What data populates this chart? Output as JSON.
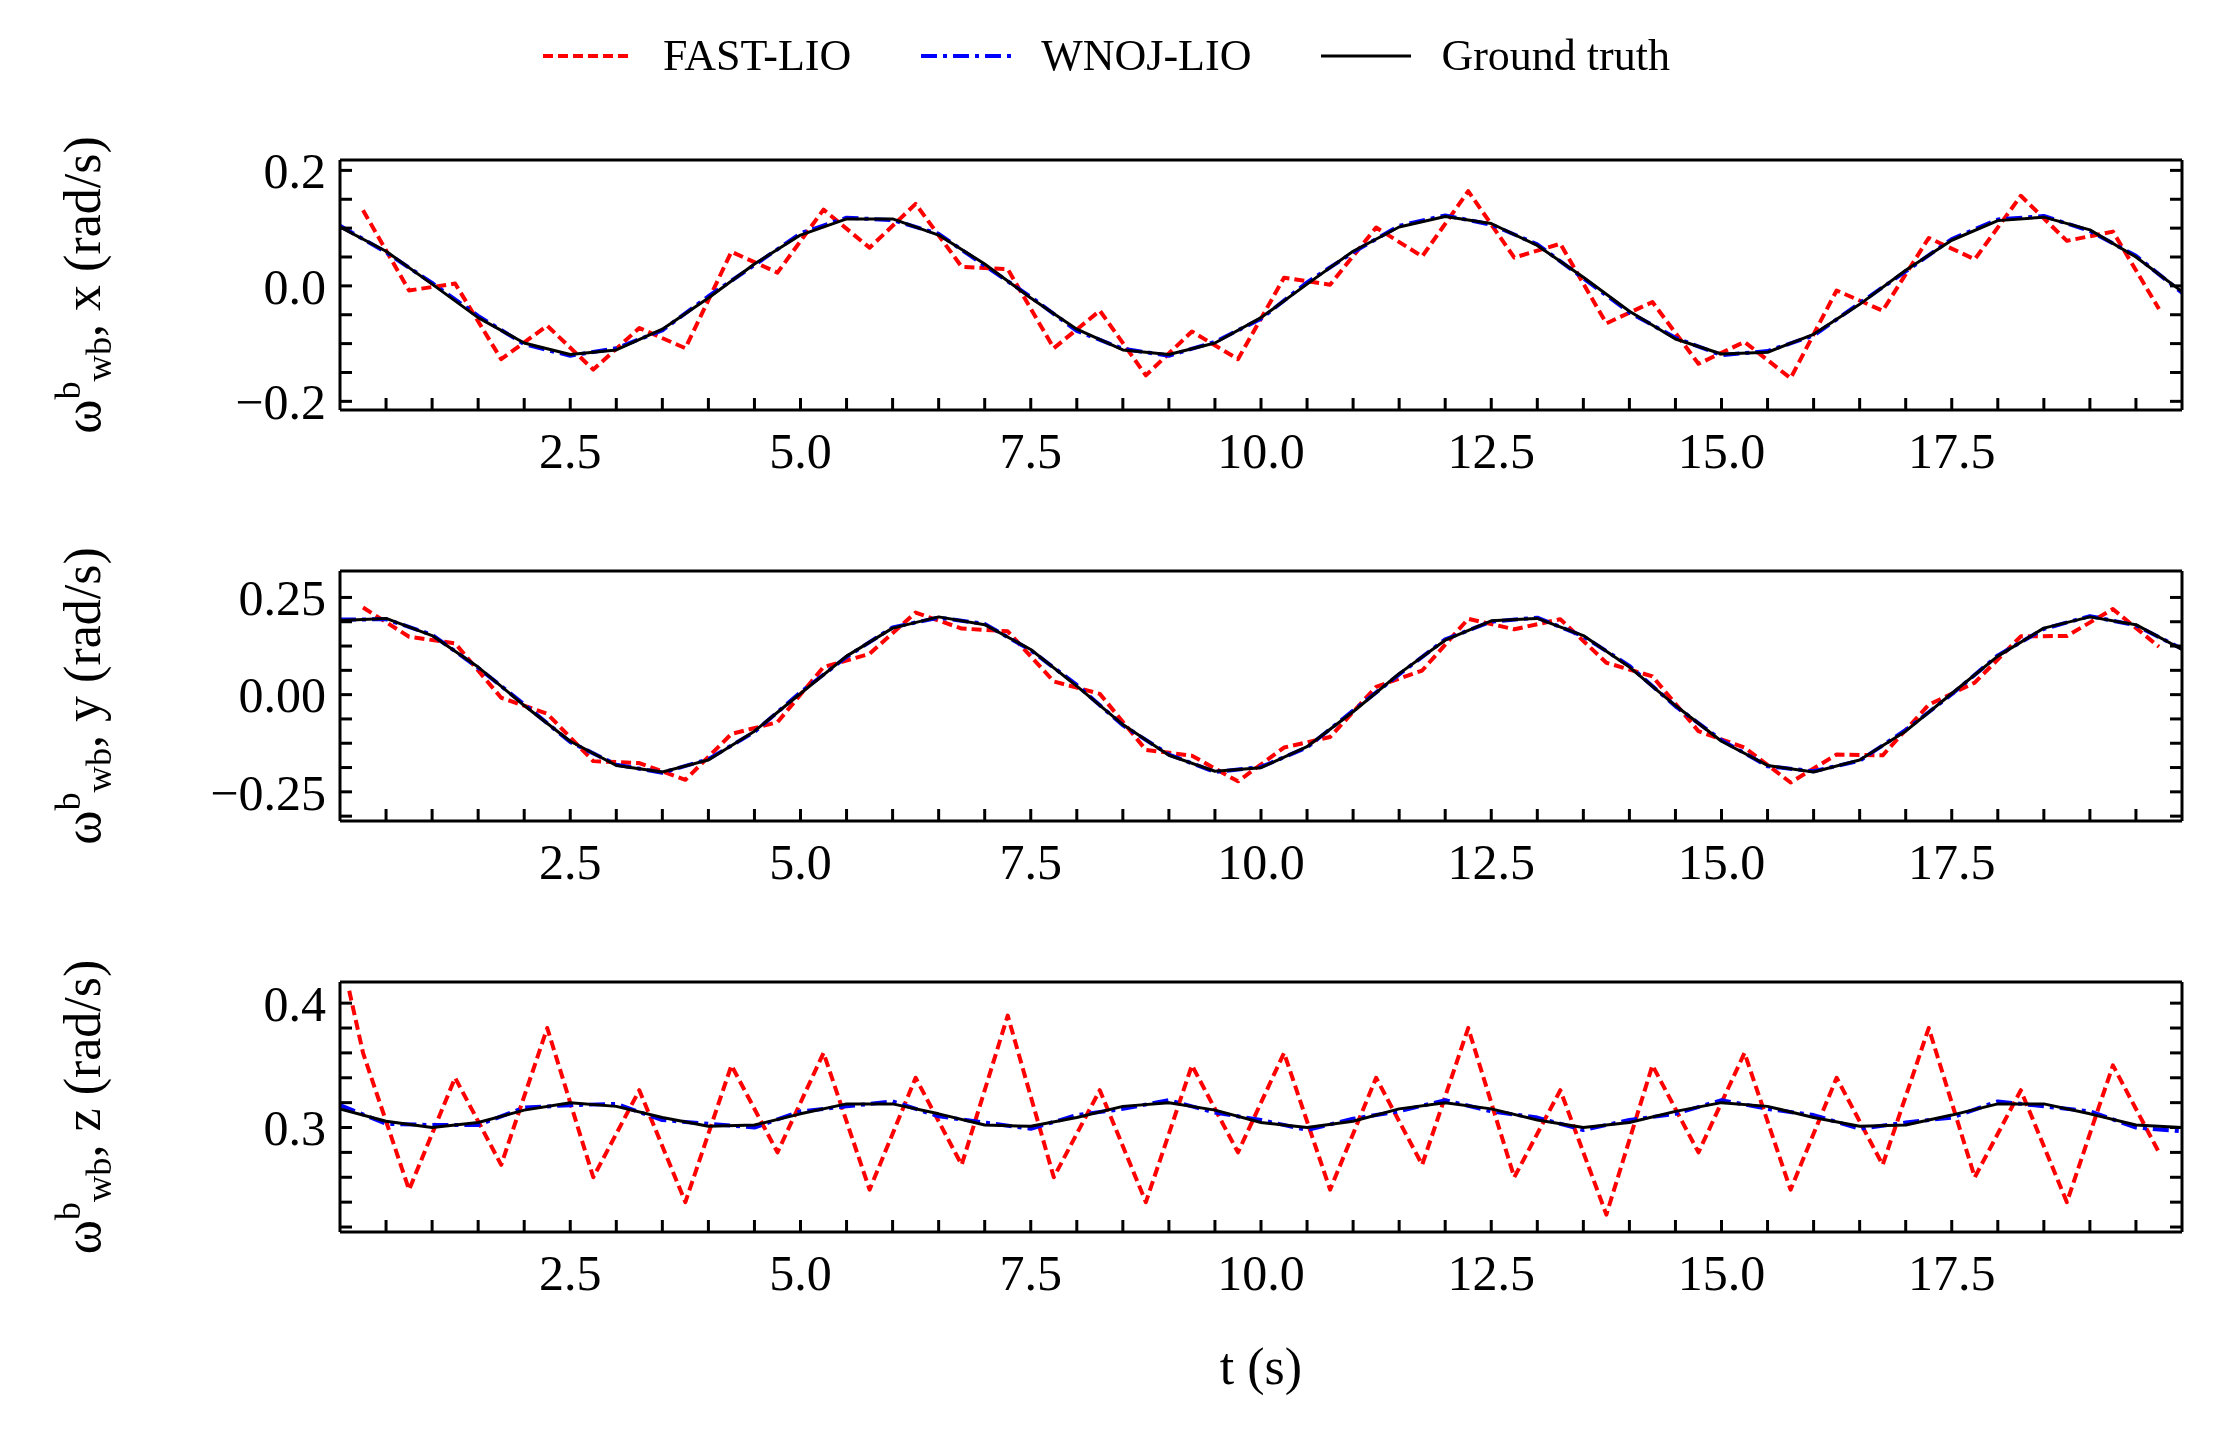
{
  "chart_data": [
    {
      "type": "line",
      "legend": "top",
      "ylabel": "ω$^{b}$$_{wb}$, x (rad/s)",
      "xlim": [
        0,
        20
      ],
      "ylim": [
        -0.215,
        0.218
      ],
      "xticks": [
        {
          "value": 0.5,
          "label": null
        },
        {
          "value": 1,
          "label": null
        },
        {
          "value": 1.5,
          "label": null
        },
        {
          "value": 2,
          "label": null
        },
        2.5,
        {
          "value": 3,
          "label": null
        },
        {
          "value": 3.5,
          "label": null
        },
        {
          "value": 4,
          "label": null
        },
        {
          "value": 4.5,
          "label": null
        },
        {
          "value": 5,
          "label": "5.0"
        },
        {
          "value": 5.5,
          "label": null
        },
        {
          "value": 6,
          "label": null
        },
        {
          "value": 6.5,
          "label": null
        },
        {
          "value": 7,
          "label": null
        },
        7.5,
        {
          "value": 8,
          "label": null
        },
        {
          "value": 8.5,
          "label": null
        },
        {
          "value": 9,
          "label": null
        },
        {
          "value": 9.5,
          "label": null
        },
        {
          "value": 10,
          "label": "10.0"
        },
        {
          "value": 10.5,
          "label": null
        },
        {
          "value": 11,
          "label": null
        },
        {
          "value": 11.5,
          "label": null
        },
        {
          "value": 12,
          "label": null
        },
        12.5,
        {
          "value": 13,
          "label": null
        },
        {
          "value": 13.5,
          "label": null
        },
        {
          "value": 14,
          "label": null
        },
        {
          "value": 14.5,
          "label": null
        },
        {
          "value": 15,
          "label": "15.0"
        },
        {
          "value": 15.5,
          "label": null
        },
        {
          "value": 16,
          "label": null
        },
        {
          "value": 16.5,
          "label": null
        },
        {
          "value": 17,
          "label": null
        },
        17.5,
        {
          "value": 18,
          "label": null
        },
        {
          "value": 18.5,
          "label": null
        },
        {
          "value": 19,
          "label": null
        },
        {
          "value": 19.5,
          "label": null
        }
      ],
      "yticks": [
        {
          "value": -0.2,
          "label": "−0.2"
        },
        {
          "value": -0.15,
          "label": null
        },
        {
          "value": -0.1,
          "label": null
        },
        {
          "value": -0.05,
          "label": null
        },
        {
          "value": 0,
          "label": "0.0"
        },
        {
          "value": 0.05,
          "label": null
        },
        {
          "value": 0.1,
          "label": null
        },
        {
          "value": 0.15,
          "label": null
        },
        0.2
      ],
      "series": [
        {
          "name": "FAST-LIO",
          "color": "#ff0000",
          "line_style": "dashed",
          "x": [
            0.25,
            0.75,
            1.25,
            1.75,
            2.25,
            2.75,
            3.25,
            3.75,
            4.25,
            4.75,
            5.25,
            5.75,
            6.25,
            6.75,
            7.25,
            7.75,
            8.25,
            8.75,
            9.25,
            9.75,
            10.25,
            10.75,
            11.25,
            11.75,
            12.25,
            12.75,
            13.25,
            13.75,
            14.25,
            14.75,
            15.25,
            15.75,
            16.25,
            16.75,
            17.25,
            17.75,
            18.25,
            18.75,
            19.25,
            19.75
          ],
          "values": [
            0.131,
            -0.008,
            0.004,
            -0.127,
            -0.069,
            -0.145,
            -0.073,
            -0.108,
            0.059,
            0.023,
            0.132,
            0.066,
            0.142,
            0.033,
            0.029,
            -0.108,
            -0.043,
            -0.155,
            -0.079,
            -0.127,
            0.014,
            0.002,
            0.101,
            0.051,
            0.164,
            0.049,
            0.073,
            -0.065,
            -0.028,
            -0.135,
            -0.097,
            -0.16,
            -0.008,
            -0.043,
            0.083,
            0.046,
            0.156,
            0.078,
            0.094,
            -0.04
          ]
        },
        {
          "name": "WNOJ-LIO",
          "color": "#0000ff",
          "line_style": "dashdot",
          "x": [
            0,
            0.5,
            1,
            1.5,
            2,
            2.5,
            3,
            3.5,
            4,
            4.5,
            5,
            5.5,
            6,
            6.5,
            7,
            7.5,
            8,
            8.5,
            9,
            9.5,
            10,
            10.5,
            11,
            11.5,
            12,
            12.5,
            13,
            13.5,
            14,
            14.5,
            15,
            15.5,
            16,
            16.5,
            17,
            17.5,
            18,
            18.5,
            19,
            19.5,
            20
          ],
          "values": [
            0.104,
            0.058,
            0.005,
            -0.052,
            -0.101,
            -0.121,
            -0.108,
            -0.077,
            -0.018,
            0.036,
            0.091,
            0.118,
            0.114,
            0.09,
            0.035,
            -0.019,
            -0.078,
            -0.109,
            -0.121,
            -0.097,
            -0.057,
            0.006,
            0.058,
            0.104,
            0.122,
            0.106,
            0.072,
            0.013,
            -0.046,
            -0.09,
            -0.12,
            -0.113,
            -0.086,
            -0.03,
            0.025,
            0.081,
            0.115,
            0.121,
            0.095,
            0.052,
            -0.012
          ]
        },
        {
          "name": "Ground truth",
          "color": "#000000",
          "line_style": "solid",
          "x": [
            0,
            0.5,
            1,
            1.5,
            2,
            2.5,
            3,
            3.5,
            4,
            4.5,
            5,
            5.5,
            6,
            6.5,
            7,
            7.5,
            8,
            8.5,
            9,
            9.5,
            10,
            10.5,
            11,
            11.5,
            12,
            12.5,
            13,
            13.5,
            14,
            14.5,
            15,
            15.5,
            16,
            16.5,
            17,
            17.5,
            18,
            18.5,
            19,
            19.5,
            20
          ],
          "values": [
            0.102,
            0.06,
            0.003,
            -0.055,
            -0.099,
            -0.119,
            -0.111,
            -0.075,
            -0.021,
            0.038,
            0.088,
            0.116,
            0.116,
            0.088,
            0.038,
            -0.021,
            -0.075,
            -0.111,
            -0.119,
            -0.099,
            -0.055,
            0.003,
            0.06,
            0.102,
            0.12,
            0.108,
            0.07,
            0.015,
            -0.044,
            -0.092,
            -0.118,
            -0.115,
            -0.084,
            -0.032,
            0.027,
            0.079,
            0.113,
            0.119,
            0.097,
            0.05,
            -0.01
          ]
        }
      ]
    },
    {
      "type": "line",
      "ylabel": "ω$^{b}$$_{wb}$, y (rad/s)",
      "xlim": [
        0,
        20
      ],
      "ylim": [
        -0.325,
        0.318
      ],
      "xticks": [
        {
          "value": 0.5,
          "label": null
        },
        {
          "value": 1,
          "label": null
        },
        {
          "value": 1.5,
          "label": null
        },
        {
          "value": 2,
          "label": null
        },
        2.5,
        {
          "value": 3,
          "label": null
        },
        {
          "value": 3.5,
          "label": null
        },
        {
          "value": 4,
          "label": null
        },
        {
          "value": 4.5,
          "label": null
        },
        {
          "value": 5,
          "label": "5.0"
        },
        {
          "value": 5.5,
          "label": null
        },
        {
          "value": 6,
          "label": null
        },
        {
          "value": 6.5,
          "label": null
        },
        {
          "value": 7,
          "label": null
        },
        7.5,
        {
          "value": 8,
          "label": null
        },
        {
          "value": 8.5,
          "label": null
        },
        {
          "value": 9,
          "label": null
        },
        {
          "value": 9.5,
          "label": null
        },
        {
          "value": 10,
          "label": "10.0"
        },
        {
          "value": 10.5,
          "label": null
        },
        {
          "value": 11,
          "label": null
        },
        {
          "value": 11.5,
          "label": null
        },
        {
          "value": 12,
          "label": null
        },
        12.5,
        {
          "value": 13,
          "label": null
        },
        {
          "value": 13.5,
          "label": null
        },
        {
          "value": 14,
          "label": null
        },
        {
          "value": 14.5,
          "label": null
        },
        {
          "value": 15,
          "label": "15.0"
        },
        {
          "value": 15.5,
          "label": null
        },
        {
          "value": 16,
          "label": null
        },
        {
          "value": 16.5,
          "label": null
        },
        {
          "value": 17,
          "label": null
        },
        17.5,
        {
          "value": 18,
          "label": null
        },
        {
          "value": 18.5,
          "label": null
        },
        {
          "value": 19,
          "label": null
        },
        {
          "value": 19.5,
          "label": null
        }
      ],
      "yticks": [
        {
          "value": -0.3125,
          "label": null
        },
        {
          "value": -0.25,
          "label": "−0.25"
        },
        {
          "value": -0.1875,
          "label": null
        },
        {
          "value": -0.125,
          "label": null
        },
        {
          "value": -0.0625,
          "label": null
        },
        {
          "value": 0,
          "label": "0.00"
        },
        {
          "value": 0.0625,
          "label": null
        },
        {
          "value": 0.125,
          "label": null
        },
        {
          "value": 0.1875,
          "label": null
        },
        0.25
      ],
      "series": [
        {
          "color": "#ff0000",
          "line_style": "dashed",
          "x": [
            0.25,
            0.75,
            1.25,
            1.75,
            2.25,
            2.75,
            3.25,
            3.75,
            4.25,
            4.75,
            5.25,
            5.75,
            6.25,
            6.75,
            7.25,
            7.75,
            8.25,
            8.75,
            9.25,
            9.75,
            10.25,
            10.75,
            11.25,
            11.75,
            12.25,
            12.75,
            13.25,
            13.75,
            14.25,
            14.75,
            15.25,
            15.75,
            16.25,
            16.75,
            17.25,
            17.75,
            18.25,
            18.75,
            19.25,
            19.75
          ],
          "values": [
            0.224,
            0.149,
            0.132,
            -0.008,
            -0.049,
            -0.171,
            -0.176,
            -0.219,
            -0.101,
            -0.071,
            0.071,
            0.105,
            0.211,
            0.17,
            0.163,
            0.034,
            0.002,
            -0.142,
            -0.157,
            -0.223,
            -0.136,
            -0.109,
            0.02,
            0.062,
            0.195,
            0.168,
            0.194,
            0.082,
            0.047,
            -0.094,
            -0.136,
            -0.226,
            -0.154,
            -0.156,
            -0.026,
            0.031,
            0.15,
            0.151,
            0.22,
            0.123
          ]
        },
        {
          "color": "#0000ff",
          "line_style": "dashdot",
          "x": [
            0,
            0.5,
            1,
            1.5,
            2,
            2.5,
            3,
            3.5,
            4,
            4.5,
            5,
            5.5,
            6,
            6.5,
            7,
            7.5,
            8,
            8.5,
            9,
            9.5,
            10,
            10.5,
            11,
            11.5,
            12,
            12.5,
            13,
            13.5,
            14,
            14.5,
            15,
            15.5,
            16,
            16.5,
            17,
            17.5,
            18,
            18.5,
            19,
            19.5,
            20
          ],
          "values": [
            0.193,
            0.194,
            0.154,
            0.069,
            -0.025,
            -0.122,
            -0.18,
            -0.201,
            -0.166,
            -0.096,
            0.006,
            0.097,
            0.173,
            0.198,
            0.182,
            0.114,
            0.025,
            -0.079,
            -0.154,
            -0.199,
            -0.186,
            -0.136,
            -0.041,
            0.052,
            0.142,
            0.188,
            0.198,
            0.15,
            0.074,
            -0.03,
            -0.117,
            -0.184,
            -0.197,
            -0.17,
            -0.091,
            0.001,
            0.101,
            0.169,
            0.202,
            0.178,
            0.118
          ]
        },
        {
          "color": "#000000",
          "line_style": "solid",
          "x": [
            0,
            0.5,
            1,
            1.5,
            2,
            2.5,
            3,
            3.5,
            4,
            4.5,
            5,
            5.5,
            6,
            6.5,
            7,
            7.5,
            8,
            8.5,
            9,
            9.5,
            10,
            10.5,
            11,
            11.5,
            12,
            12.5,
            13,
            13.5,
            14,
            14.5,
            15,
            15.5,
            16,
            16.5,
            17,
            17.5,
            18,
            18.5,
            19,
            19.5,
            20
          ],
          "values": [
            0.191,
            0.196,
            0.152,
            0.071,
            -0.028,
            -0.12,
            -0.182,
            -0.199,
            -0.168,
            -0.094,
            0.003,
            0.099,
            0.171,
            0.2,
            0.18,
            0.116,
            0.022,
            -0.077,
            -0.156,
            -0.197,
            -0.188,
            -0.134,
            -0.044,
            0.054,
            0.14,
            0.19,
            0.196,
            0.152,
            0.071,
            -0.028,
            -0.12,
            -0.182,
            -0.199,
            -0.168,
            -0.094,
            0.003,
            0.099,
            0.171,
            0.2,
            0.18,
            0.116
          ]
        }
      ]
    },
    {
      "type": "line",
      "ylabel": "ω$^{b}$$_{wb}$, z (rad/s)",
      "xlabel": "t (s)",
      "xlim": [
        0,
        20
      ],
      "ylim": [
        0.216,
        0.417
      ],
      "xticks": [
        {
          "value": 0.5,
          "label": null
        },
        {
          "value": 1,
          "label": null
        },
        {
          "value": 1.5,
          "label": null
        },
        {
          "value": 2,
          "label": null
        },
        2.5,
        {
          "value": 3,
          "label": null
        },
        {
          "value": 3.5,
          "label": null
        },
        {
          "value": 4,
          "label": null
        },
        {
          "value": 4.5,
          "label": null
        },
        {
          "value": 5,
          "label": "5.0"
        },
        {
          "value": 5.5,
          "label": null
        },
        {
          "value": 6,
          "label": null
        },
        {
          "value": 6.5,
          "label": null
        },
        {
          "value": 7,
          "label": null
        },
        7.5,
        {
          "value": 8,
          "label": null
        },
        {
          "value": 8.5,
          "label": null
        },
        {
          "value": 9,
          "label": null
        },
        {
          "value": 9.5,
          "label": null
        },
        {
          "value": 10,
          "label": "10.0"
        },
        {
          "value": 10.5,
          "label": null
        },
        {
          "value": 11,
          "label": null
        },
        {
          "value": 11.5,
          "label": null
        },
        {
          "value": 12,
          "label": null
        },
        12.5,
        {
          "value": 13,
          "label": null
        },
        {
          "value": 13.5,
          "label": null
        },
        {
          "value": 14,
          "label": null
        },
        {
          "value": 14.5,
          "label": null
        },
        {
          "value": 15,
          "label": "15.0"
        },
        {
          "value": 15.5,
          "label": null
        },
        {
          "value": 16,
          "label": null
        },
        {
          "value": 16.5,
          "label": null
        },
        {
          "value": 17,
          "label": null
        },
        17.5,
        {
          "value": 18,
          "label": null
        },
        {
          "value": 18.5,
          "label": null
        },
        {
          "value": 19,
          "label": null
        },
        {
          "value": 19.5,
          "label": null
        }
      ],
      "yticks": [
        {
          "value": 0.22,
          "label": null
        },
        {
          "value": 0.24,
          "label": null
        },
        {
          "value": 0.26,
          "label": null
        },
        {
          "value": 0.28,
          "label": null
        },
        0.3,
        {
          "value": 0.32,
          "label": null
        },
        {
          "value": 0.34,
          "label": null
        },
        {
          "value": 0.36,
          "label": null
        },
        {
          "value": 0.38,
          "label": null
        },
        0.4
      ],
      "series": [
        {
          "color": "#ff0000",
          "line_style": "dashed",
          "x": [
            0.1,
            0.25,
            0.75,
            1.25,
            1.75,
            2.25,
            2.75,
            3.25,
            3.75,
            4.25,
            4.75,
            5.25,
            5.75,
            6.25,
            6.75,
            7.25,
            7.75,
            8.25,
            8.75,
            9.25,
            9.75,
            10.25,
            10.75,
            11.25,
            11.75,
            12.25,
            12.75,
            13.25,
            13.75,
            14.25,
            14.75,
            15.25,
            15.75,
            16.25,
            16.75,
            17.25,
            17.75,
            18.25,
            18.75,
            19.25,
            19.75
          ],
          "values": [
            0.41,
            0.36,
            0.25,
            0.34,
            0.27,
            0.38,
            0.26,
            0.33,
            0.24,
            0.35,
            0.28,
            0.36,
            0.25,
            0.34,
            0.27,
            0.39,
            0.26,
            0.33,
            0.24,
            0.35,
            0.28,
            0.36,
            0.25,
            0.34,
            0.27,
            0.38,
            0.26,
            0.33,
            0.23,
            0.35,
            0.28,
            0.36,
            0.25,
            0.34,
            0.27,
            0.38,
            0.26,
            0.33,
            0.24,
            0.35,
            0.28
          ]
        },
        {
          "color": "#0000ff",
          "line_style": "dashdot",
          "x": [
            0,
            0.5,
            1,
            1.5,
            2,
            2.5,
            3,
            3.5,
            4,
            4.5,
            5,
            5.5,
            6,
            6.5,
            7,
            7.5,
            8,
            8.5,
            9,
            9.5,
            10,
            10.5,
            11,
            11.5,
            12,
            12.5,
            13,
            13.5,
            14,
            14.5,
            15,
            15.5,
            16,
            16.5,
            17,
            17.5,
            18,
            18.5,
            19,
            19.5,
            20
          ],
          "values": [
            0.318,
            0.303,
            0.302,
            0.302,
            0.316,
            0.318,
            0.319,
            0.306,
            0.303,
            0.3,
            0.313,
            0.317,
            0.321,
            0.309,
            0.304,
            0.299,
            0.31,
            0.315,
            0.322,
            0.312,
            0.306,
            0.298,
            0.307,
            0.313,
            0.322,
            0.313,
            0.308,
            0.298,
            0.306,
            0.311,
            0.322,
            0.315,
            0.31,
            0.299,
            0.304,
            0.308,
            0.321,
            0.317,
            0.313,
            0.3,
            0.297
          ]
        },
        {
          "color": "#000000",
          "line_style": "solid",
          "x": [
            0,
            0.5,
            1,
            1.5,
            2,
            2.5,
            3,
            3.5,
            4,
            4.5,
            5,
            5.5,
            6,
            6.5,
            7,
            7.5,
            8,
            8.5,
            9,
            9.5,
            10,
            10.5,
            11,
            11.5,
            12,
            12.5,
            13,
            13.5,
            14,
            14.5,
            15,
            15.5,
            16,
            16.5,
            17,
            17.5,
            18,
            18.5,
            19,
            19.5,
            20
          ],
          "values": [
            0.315,
            0.305,
            0.3,
            0.304,
            0.314,
            0.32,
            0.317,
            0.308,
            0.301,
            0.302,
            0.311,
            0.319,
            0.319,
            0.311,
            0.302,
            0.301,
            0.308,
            0.317,
            0.32,
            0.314,
            0.304,
            0.3,
            0.305,
            0.315,
            0.32,
            0.315,
            0.306,
            0.3,
            0.304,
            0.313,
            0.32,
            0.317,
            0.308,
            0.301,
            0.302,
            0.31,
            0.319,
            0.319,
            0.311,
            0.302,
            0.3
          ]
        }
      ]
    }
  ]
}
